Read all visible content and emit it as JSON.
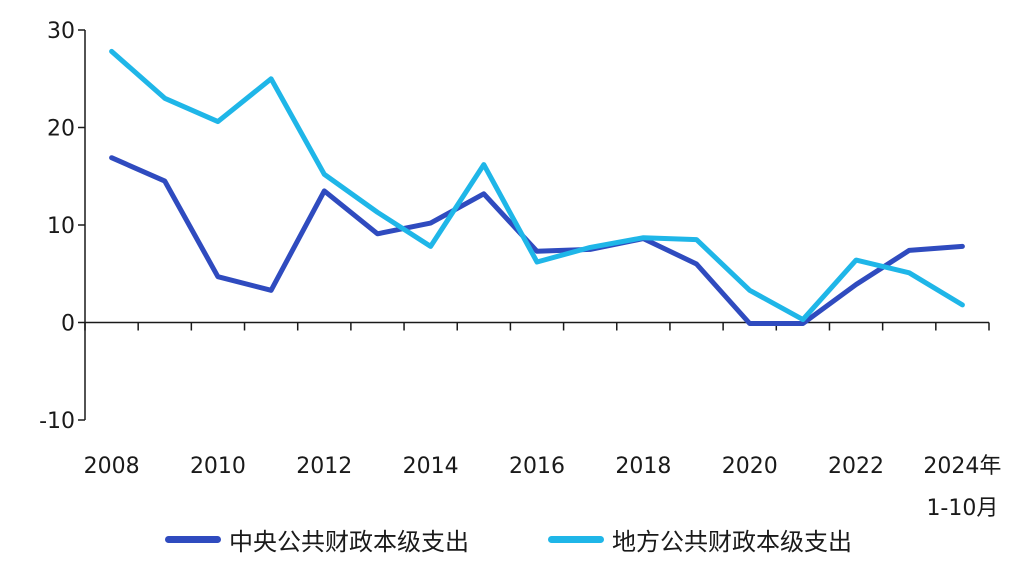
{
  "chart_data": {
    "type": "line",
    "x": [
      "2008",
      "2009",
      "2010",
      "2011",
      "2012",
      "2013",
      "2014",
      "2015",
      "2016",
      "2017",
      "2018",
      "2019",
      "2020",
      "2021",
      "2022",
      "2023",
      "2024年1-10月"
    ],
    "x_tick_labels": [
      "2008",
      "2010",
      "2012",
      "2014",
      "2016",
      "2018",
      "2020",
      "2022",
      "2024年"
    ],
    "x_last_label_line2": "1-10月",
    "y_ticks": [
      "30",
      "20",
      "10",
      "0",
      "-10"
    ],
    "ylim": [
      -10,
      30
    ],
    "series": [
      {
        "name": "中央公共财政本级支出",
        "color": "#2f4bbf",
        "values": [
          16.9,
          14.5,
          4.7,
          3.3,
          13.5,
          9.1,
          10.2,
          13.2,
          7.3,
          7.5,
          8.6,
          6.0,
          -0.1,
          -0.1,
          3.9,
          7.4,
          7.8
        ]
      },
      {
        "name": "地方公共财政本级支出",
        "color": "#1fb6e8",
        "values": [
          27.8,
          23.0,
          20.6,
          25.0,
          15.2,
          11.3,
          7.8,
          16.2,
          6.2,
          7.7,
          8.7,
          8.5,
          3.3,
          0.3,
          6.4,
          5.1,
          1.8
        ]
      }
    ],
    "grid": false,
    "legend_position": "bottom"
  }
}
